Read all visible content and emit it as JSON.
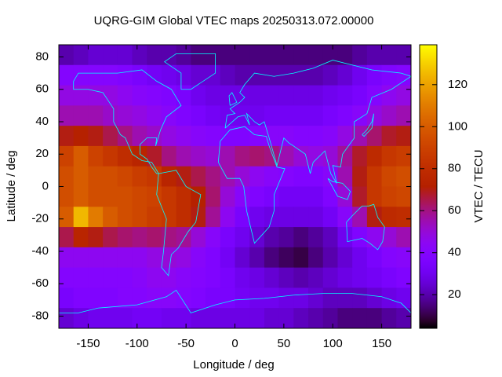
{
  "chart_data": {
    "type": "heatmap",
    "title": "UQRG-GIM Global VTEC maps 20250313.072.00000",
    "x_label": "Longitude / deg",
    "y_label": "Latitude / deg",
    "colorbar_label": "VTEC / TECU",
    "xlim": [
      -180,
      180
    ],
    "ylim": [
      -87.5,
      87.5
    ],
    "xticks": [
      -150,
      -100,
      -50,
      0,
      50,
      100,
      150
    ],
    "yticks": [
      -80,
      -60,
      -40,
      -20,
      0,
      20,
      40,
      60,
      80
    ],
    "cblim": [
      4,
      139
    ],
    "cbticks": [
      20,
      40,
      60,
      80,
      100,
      120
    ],
    "x": [
      -172.5,
      -157.5,
      -142.5,
      -127.5,
      -112.5,
      -97.5,
      -82.5,
      -67.5,
      -52.5,
      -37.5,
      -22.5,
      -7.5,
      7.5,
      22.5,
      37.5,
      52.5,
      67.5,
      82.5,
      97.5,
      112.5,
      127.5,
      142.5,
      157.5,
      172.5
    ],
    "y": [
      81.25,
      68.75,
      56.25,
      43.75,
      31.25,
      18.75,
      6.25,
      -6.25,
      -18.75,
      -31.25,
      -43.75,
      -56.25,
      -68.75,
      -81.25
    ],
    "z": [
      [
        20,
        22,
        25,
        25,
        25,
        22,
        20,
        20,
        18,
        15,
        15,
        15,
        15,
        15,
        15,
        15,
        15,
        15,
        15,
        15,
        18,
        20,
        20,
        20
      ],
      [
        40,
        40,
        40,
        40,
        38,
        35,
        32,
        30,
        28,
        25,
        25,
        22,
        20,
        20,
        20,
        20,
        20,
        20,
        22,
        25,
        30,
        35,
        38,
        40
      ],
      [
        48,
        48,
        48,
        48,
        45,
        42,
        40,
        38,
        35,
        30,
        28,
        28,
        28,
        28,
        28,
        28,
        28,
        28,
        30,
        32,
        35,
        40,
        45,
        48
      ],
      [
        55,
        55,
        55,
        52,
        50,
        48,
        45,
        42,
        38,
        35,
        32,
        30,
        30,
        30,
        32,
        32,
        32,
        32,
        35,
        38,
        42,
        48,
        52,
        55
      ],
      [
        70,
        72,
        70,
        65,
        60,
        55,
        52,
        48,
        45,
        42,
        40,
        38,
        38,
        40,
        42,
        42,
        40,
        40,
        42,
        48,
        55,
        62,
        68,
        70
      ],
      [
        90,
        100,
        90,
        85,
        80,
        75,
        68,
        60,
        55,
        52,
        50,
        55,
        60,
        62,
        60,
        55,
        50,
        48,
        50,
        58,
        68,
        78,
        85,
        88
      ],
      [
        95,
        100,
        95,
        95,
        92,
        88,
        85,
        75,
        70,
        65,
        60,
        55,
        50,
        45,
        42,
        40,
        38,
        38,
        42,
        55,
        70,
        85,
        92,
        95
      ],
      [
        95,
        100,
        95,
        95,
        95,
        92,
        90,
        85,
        80,
        72,
        62,
        50,
        42,
        38,
        35,
        32,
        32,
        32,
        38,
        50,
        68,
        85,
        90,
        92
      ],
      [
        100,
        125,
        110,
        100,
        95,
        92,
        88,
        85,
        80,
        70,
        58,
        45,
        35,
        30,
        28,
        28,
        28,
        28,
        32,
        42,
        55,
        70,
        78,
        80
      ],
      [
        65,
        75,
        70,
        65,
        62,
        60,
        62,
        60,
        58,
        50,
        42,
        35,
        30,
        25,
        20,
        18,
        15,
        18,
        22,
        30,
        38,
        45,
        50,
        55
      ],
      [
        45,
        45,
        45,
        45,
        45,
        45,
        48,
        50,
        48,
        42,
        38,
        32,
        25,
        20,
        15,
        12,
        10,
        15,
        20,
        25,
        30,
        35,
        40,
        42
      ],
      [
        40,
        40,
        40,
        40,
        40,
        42,
        45,
        45,
        42,
        40,
        38,
        35,
        30,
        28,
        25,
        22,
        20,
        22,
        25,
        28,
        30,
        32,
        35,
        38
      ],
      [
        35,
        38,
        38,
        38,
        40,
        40,
        42,
        42,
        40,
        38,
        35,
        35,
        32,
        30,
        30,
        28,
        28,
        25,
        22,
        22,
        22,
        25,
        28,
        30
      ],
      [
        25,
        28,
        30,
        30,
        30,
        32,
        32,
        30,
        30,
        28,
        28,
        28,
        28,
        28,
        25,
        25,
        22,
        20,
        18,
        15,
        15,
        15,
        18,
        20
      ]
    ]
  }
}
